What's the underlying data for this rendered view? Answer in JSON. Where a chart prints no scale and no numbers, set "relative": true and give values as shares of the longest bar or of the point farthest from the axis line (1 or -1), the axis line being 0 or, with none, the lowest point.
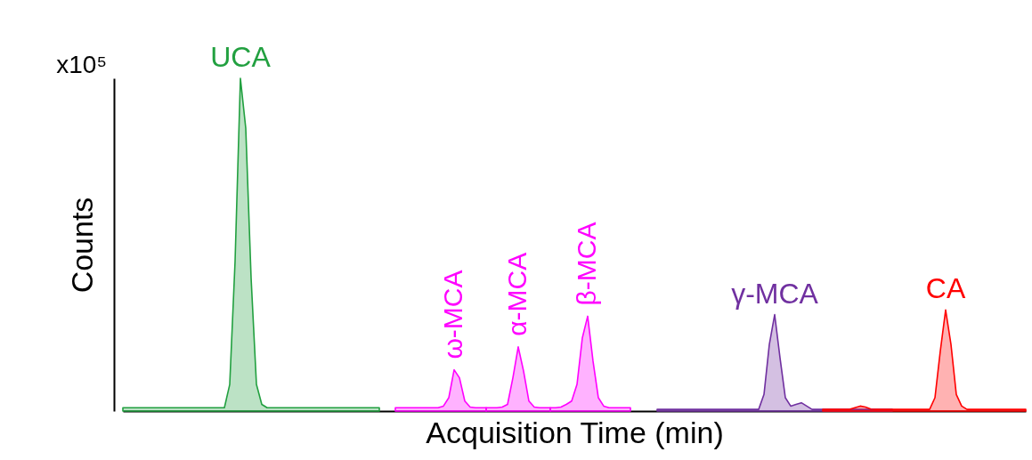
{
  "chart_data": {
    "type": "area",
    "relative": true,
    "tick_labels": false,
    "xlabel": "Acquisition Time (min)",
    "ylabel": "Counts",
    "annotations": [
      "x10⁵"
    ],
    "categories": [
      null,
      null,
      null,
      null,
      null,
      null,
      null,
      null,
      null,
      null,
      null,
      null,
      null,
      null,
      null,
      null,
      null,
      null,
      null,
      null,
      null,
      null,
      null,
      null,
      null,
      null,
      null,
      null,
      null,
      null,
      null,
      null,
      null,
      null,
      null,
      null,
      null,
      null,
      null,
      null,
      null,
      null,
      null,
      null,
      null,
      null,
      null,
      null,
      null,
      null,
      null,
      null,
      null,
      null,
      null,
      null,
      null,
      null,
      null,
      null,
      null,
      null,
      null,
      null,
      null,
      null,
      null,
      null,
      null,
      null,
      null,
      null,
      null,
      null,
      null,
      null,
      null,
      null,
      null,
      null,
      null,
      null,
      null,
      null,
      null,
      null,
      null,
      null,
      null,
      null,
      null,
      null,
      null,
      null,
      null,
      null,
      null,
      null,
      null,
      null,
      null,
      null,
      null,
      null,
      null,
      null,
      null,
      null,
      null,
      null,
      null,
      null,
      null,
      null,
      null,
      null,
      null,
      null,
      null,
      null,
      null,
      null,
      null,
      null,
      null,
      null,
      null,
      null,
      null,
      null,
      null,
      null,
      null,
      null,
      null,
      null,
      null,
      null,
      null,
      null,
      null,
      null,
      null,
      null,
      null,
      null,
      null,
      null,
      null,
      null,
      null,
      null,
      null,
      null,
      null,
      null,
      null,
      null,
      null,
      null,
      null,
      null,
      null,
      null,
      null,
      null,
      null,
      null,
      null,
      null
    ],
    "series": [
      {
        "name": "UCA",
        "color": "#22a040",
        "values": [
          0.01,
          0.01,
          0.01,
          0.01,
          0.01,
          0.01,
          0.01,
          0.01,
          0.01,
          0.01,
          0.01,
          0.01,
          0.01,
          0.01,
          0.01,
          0.01,
          0.01,
          0.01,
          0.01,
          0.01,
          0.08,
          0.45,
          1,
          0.85,
          0.4,
          0.08,
          0.02,
          0.01,
          0.01,
          0.01,
          0.01,
          0.01,
          0.01,
          0.01,
          0.01,
          0.01,
          0.01,
          0.01,
          0.01,
          0.01,
          0.01,
          0.01,
          0.01,
          0.01,
          0.01,
          0.01,
          0.01,
          0.01,
          0.01,
          null,
          null,
          null,
          null,
          null,
          null,
          null,
          null,
          null,
          null,
          null,
          null,
          null,
          null,
          null,
          null,
          null,
          null,
          null,
          null,
          null,
          null,
          null,
          null,
          null,
          null,
          null,
          null,
          null,
          null,
          null,
          null,
          null,
          null,
          null,
          null,
          null,
          null,
          null,
          null,
          null,
          null,
          null,
          null,
          null,
          null,
          null,
          null,
          null,
          null,
          null,
          null,
          null,
          null,
          null,
          null,
          null,
          null,
          null,
          null,
          null,
          null,
          null,
          null,
          null,
          null,
          null,
          null,
          null,
          null,
          null,
          null,
          null,
          null,
          null,
          null,
          null,
          null,
          null,
          null,
          null,
          null,
          null,
          null,
          null,
          null,
          null,
          null,
          null,
          null,
          null,
          null,
          null,
          null,
          null,
          null,
          null,
          null,
          null,
          null,
          null,
          null,
          null,
          null,
          null,
          null,
          null,
          null,
          null,
          null,
          null,
          null,
          null,
          null,
          null,
          null,
          null,
          null,
          null,
          null,
          null
        ]
      },
      {
        "name": "ω-MCA",
        "color": "#ff00ff",
        "values": [
          null,
          null,
          null,
          null,
          null,
          null,
          null,
          null,
          null,
          null,
          null,
          null,
          null,
          null,
          null,
          null,
          null,
          null,
          null,
          null,
          null,
          null,
          null,
          null,
          null,
          null,
          null,
          null,
          null,
          null,
          null,
          null,
          null,
          null,
          null,
          null,
          null,
          null,
          null,
          null,
          null,
          null,
          null,
          null,
          null,
          null,
          null,
          null,
          null,
          null,
          null,
          0.01,
          0.01,
          0.01,
          0.01,
          0.01,
          0.01,
          0.01,
          0.01,
          0.01,
          0.015,
          0.04,
          0.124,
          0.1,
          0.03,
          0.012,
          0.01,
          0.01,
          0.01,
          null,
          null,
          null,
          null,
          null,
          null,
          null,
          null,
          null,
          null,
          null,
          null,
          null,
          null,
          null,
          null,
          null,
          null,
          null,
          null,
          null,
          null,
          null,
          null,
          null,
          null,
          null,
          null,
          null,
          null,
          null,
          null,
          null,
          null,
          null,
          null,
          null,
          null,
          null,
          null,
          null,
          null,
          null,
          null,
          null,
          null,
          null,
          null,
          null,
          null,
          null,
          null,
          null,
          null,
          null,
          null,
          null,
          null,
          null,
          null,
          null,
          null,
          null,
          null,
          null,
          null,
          null,
          null,
          null,
          null,
          null,
          null,
          null,
          null,
          null,
          null,
          null,
          null,
          null,
          null,
          null,
          null,
          null,
          null,
          null,
          null,
          null,
          null,
          null,
          null,
          null,
          null,
          null,
          null,
          null,
          null,
          null,
          null,
          null,
          null,
          null
        ]
      },
      {
        "name": "α-MCA",
        "color": "#ff00ff",
        "values": [
          null,
          null,
          null,
          null,
          null,
          null,
          null,
          null,
          null,
          null,
          null,
          null,
          null,
          null,
          null,
          null,
          null,
          null,
          null,
          null,
          null,
          null,
          null,
          null,
          null,
          null,
          null,
          null,
          null,
          null,
          null,
          null,
          null,
          null,
          null,
          null,
          null,
          null,
          null,
          null,
          null,
          null,
          null,
          null,
          null,
          null,
          null,
          null,
          null,
          null,
          null,
          null,
          null,
          null,
          null,
          null,
          null,
          null,
          null,
          null,
          null,
          null,
          null,
          null,
          null,
          null,
          null,
          null,
          0.01,
          0.01,
          0.01,
          0.012,
          0.02,
          0.1,
          0.193,
          0.12,
          0.03,
          0.012,
          0.01,
          0.01,
          0.01,
          null,
          null,
          null,
          null,
          null,
          null,
          null,
          null,
          null,
          null,
          null,
          null,
          null,
          null,
          null,
          null,
          null,
          null,
          null,
          null,
          null,
          null,
          null,
          null,
          null,
          null,
          null,
          null,
          null,
          null,
          null,
          null,
          null,
          null,
          null,
          null,
          null,
          null,
          null,
          null,
          null,
          null,
          null,
          null,
          null,
          null,
          null,
          null,
          null,
          null,
          null,
          null,
          null,
          null,
          null,
          null,
          null,
          null,
          null,
          null,
          null,
          null,
          null,
          null,
          null,
          null,
          null,
          null,
          null,
          null,
          null,
          null,
          null,
          null,
          null,
          null,
          null,
          null,
          null,
          null,
          null,
          null,
          null,
          null,
          null,
          null,
          null,
          null,
          null
        ]
      },
      {
        "name": "β-MCA",
        "color": "#ff00ff",
        "values": [
          null,
          null,
          null,
          null,
          null,
          null,
          null,
          null,
          null,
          null,
          null,
          null,
          null,
          null,
          null,
          null,
          null,
          null,
          null,
          null,
          null,
          null,
          null,
          null,
          null,
          null,
          null,
          null,
          null,
          null,
          null,
          null,
          null,
          null,
          null,
          null,
          null,
          null,
          null,
          null,
          null,
          null,
          null,
          null,
          null,
          null,
          null,
          null,
          null,
          null,
          null,
          null,
          null,
          null,
          null,
          null,
          null,
          null,
          null,
          null,
          null,
          null,
          null,
          null,
          null,
          null,
          null,
          null,
          null,
          null,
          null,
          null,
          null,
          null,
          null,
          null,
          null,
          null,
          null,
          null,
          0.01,
          0.01,
          0.012,
          0.02,
          0.03,
          0.08,
          0.22,
          0.285,
          0.15,
          0.04,
          0.015,
          0.01,
          0.01,
          0.01,
          0.01,
          0.01,
          null,
          null,
          null,
          null,
          null,
          null,
          null,
          null,
          null,
          null,
          null,
          null,
          null,
          null,
          null,
          null,
          null,
          null,
          null,
          null,
          null,
          null,
          null,
          null,
          null,
          null,
          null,
          null,
          null,
          null,
          null,
          null,
          null,
          null,
          null,
          null,
          null,
          null,
          null,
          null,
          null,
          null,
          null,
          null,
          null,
          null,
          null,
          null,
          null,
          null,
          null,
          null,
          null,
          null,
          null,
          null,
          null,
          null,
          null,
          null,
          null,
          null,
          null,
          null,
          null,
          null,
          null,
          null,
          null,
          null,
          null,
          null,
          null,
          null
        ]
      },
      {
        "name": "γ-MCA",
        "color": "#7030a0",
        "values": [
          null,
          null,
          null,
          null,
          null,
          null,
          null,
          null,
          null,
          null,
          null,
          null,
          null,
          null,
          null,
          null,
          null,
          null,
          null,
          null,
          null,
          null,
          null,
          null,
          null,
          null,
          null,
          null,
          null,
          null,
          null,
          null,
          null,
          null,
          null,
          null,
          null,
          null,
          null,
          null,
          null,
          null,
          null,
          null,
          null,
          null,
          null,
          null,
          null,
          null,
          null,
          null,
          null,
          null,
          null,
          null,
          null,
          null,
          null,
          null,
          null,
          null,
          null,
          null,
          null,
          null,
          null,
          null,
          null,
          null,
          null,
          null,
          null,
          null,
          null,
          null,
          null,
          null,
          null,
          null,
          null,
          null,
          null,
          null,
          null,
          null,
          null,
          null,
          null,
          null,
          null,
          null,
          null,
          null,
          null,
          null,
          null,
          null,
          null,
          null,
          0.005,
          0.005,
          0.005,
          0.005,
          0.005,
          0.005,
          0.005,
          0.005,
          0.005,
          0.005,
          0.005,
          0.005,
          0.005,
          0.005,
          0.005,
          0.005,
          0.005,
          0.005,
          0.005,
          0.005,
          0.05,
          0.2,
          0.29,
          0.16,
          0.04,
          0.015,
          0.02,
          0.025,
          0.015,
          0.005,
          0.005,
          0.005,
          0.005,
          0.005,
          0.005,
          0.005,
          0.005,
          0.005,
          0.005,
          0.005,
          0.005,
          0.005,
          0.005,
          0.005,
          0.005,
          null,
          null,
          null,
          null,
          null,
          null,
          null,
          null,
          null,
          null,
          null,
          null,
          null,
          null,
          null,
          null,
          null,
          null,
          null,
          null,
          null,
          null,
          null,
          null,
          null
        ]
      },
      {
        "name": "CA",
        "color": "#ff0000",
        "values": [
          null,
          null,
          null,
          null,
          null,
          null,
          null,
          null,
          null,
          null,
          null,
          null,
          null,
          null,
          null,
          null,
          null,
          null,
          null,
          null,
          null,
          null,
          null,
          null,
          null,
          null,
          null,
          null,
          null,
          null,
          null,
          null,
          null,
          null,
          null,
          null,
          null,
          null,
          null,
          null,
          null,
          null,
          null,
          null,
          null,
          null,
          null,
          null,
          null,
          null,
          null,
          null,
          null,
          null,
          null,
          null,
          null,
          null,
          null,
          null,
          null,
          null,
          null,
          null,
          null,
          null,
          null,
          null,
          null,
          null,
          null,
          null,
          null,
          null,
          null,
          null,
          null,
          null,
          null,
          null,
          null,
          null,
          null,
          null,
          null,
          null,
          null,
          null,
          null,
          null,
          null,
          null,
          null,
          null,
          null,
          null,
          null,
          null,
          null,
          null,
          null,
          null,
          null,
          null,
          null,
          null,
          null,
          null,
          null,
          null,
          null,
          null,
          null,
          null,
          null,
          null,
          null,
          null,
          null,
          null,
          null,
          null,
          null,
          null,
          null,
          null,
          null,
          null,
          null,
          null,
          null,
          0.005,
          0.005,
          0.005,
          0.005,
          0.005,
          0.005,
          0.01,
          0.015,
          0.012,
          0.006,
          0.005,
          0.005,
          0.005,
          0.005,
          0.005,
          0.005,
          0.005,
          0.005,
          0.005,
          0.005,
          0.005,
          0.04,
          0.18,
          0.304,
          0.2,
          0.05,
          0.015,
          0.005,
          0.005,
          0.005,
          0.005,
          0.005,
          0.005,
          0.005,
          0.005,
          0.005,
          0.005,
          0.005,
          0.005
        ]
      }
    ]
  }
}
